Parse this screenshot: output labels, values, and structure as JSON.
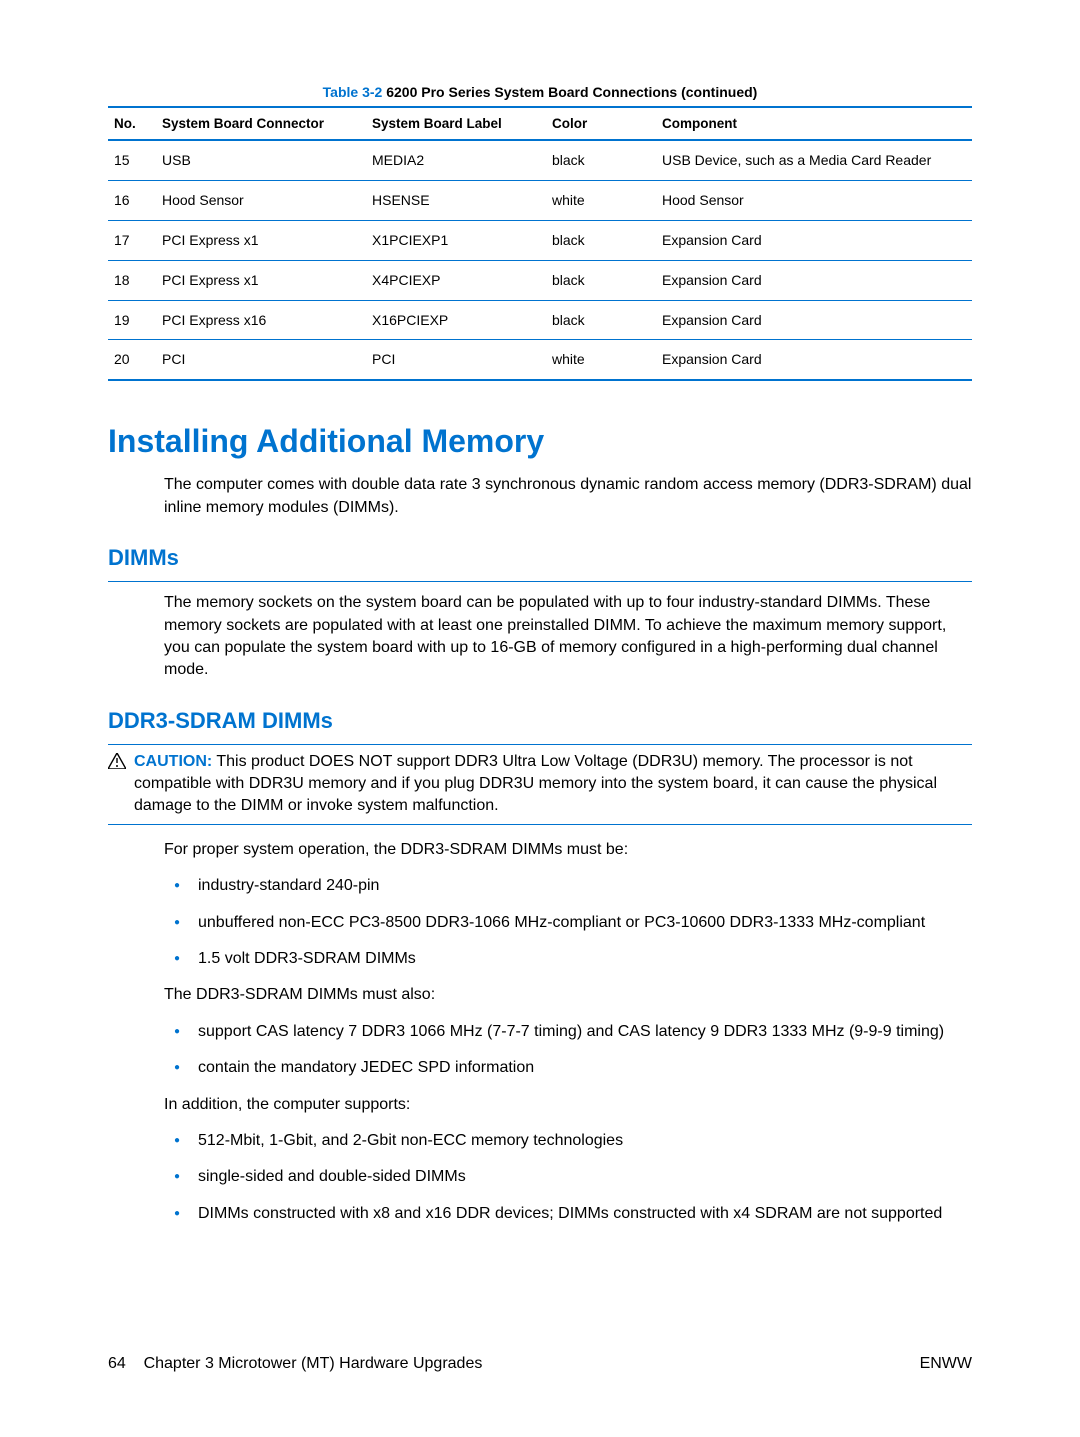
{
  "table": {
    "caption_prefix": "Table 3-2",
    "caption_rest": "  6200 Pro Series System Board Connections (continued)",
    "columns": [
      "No.",
      "System Board Connector",
      "System Board Label",
      "Color",
      "Component"
    ],
    "rows": [
      [
        "15",
        "USB",
        "MEDIA2",
        "black",
        "USB Device, such as a Media Card Reader"
      ],
      [
        "16",
        "Hood Sensor",
        "HSENSE",
        "white",
        "Hood Sensor"
      ],
      [
        "17",
        "PCI Express x1",
        "X1PCIEXP1",
        "black",
        "Expansion Card"
      ],
      [
        "18",
        "PCI Express x1",
        "X4PCIEXP",
        "black",
        "Expansion Card"
      ],
      [
        "19",
        "PCI Express x16",
        "X16PCIEXP",
        "black",
        "Expansion Card"
      ],
      [
        "20",
        "PCI",
        "PCI",
        "white",
        "Expansion Card"
      ]
    ]
  },
  "h1": "Installing Additional Memory",
  "intro": "The computer comes with double data rate 3 synchronous dynamic random access memory (DDR3-SDRAM) dual inline memory modules (DIMMs).",
  "h2_dimms": "DIMMs",
  "dimms_para": "The memory sockets on the system board can be populated with up to four industry-standard DIMMs. These memory sockets are populated with at least one preinstalled DIMM. To achieve the maximum memory support, you can populate the system board with up to 16-GB of memory configured in a high-performing dual channel mode.",
  "h2_ddr3": "DDR3-SDRAM DIMMs",
  "caution_label": "CAUTION:",
  "caution_text": "   This product DOES NOT support DDR3 Ultra Low Voltage (DDR3U) memory. The processor is not compatible with DDR3U memory and if you plug DDR3U memory into the system board, it can cause the physical damage to the DIMM or invoke system malfunction.",
  "para_proper": "For proper system operation, the DDR3-SDRAM DIMMs must be:",
  "list1": [
    "industry-standard 240-pin",
    "unbuffered non-ECC PC3-8500 DDR3-1066 MHz-compliant or PC3-10600 DDR3-1333 MHz-compliant",
    "1.5 volt DDR3-SDRAM DIMMs"
  ],
  "para_also": "The DDR3-SDRAM DIMMs must also:",
  "list2": [
    "support CAS latency 7 DDR3 1066 MHz (7-7-7 timing) and CAS latency 9 DDR3 1333 MHz (9-9-9 timing)",
    "contain the mandatory JEDEC SPD information"
  ],
  "para_addition": "In addition, the computer supports:",
  "list3": [
    "512-Mbit, 1-Gbit, and 2-Gbit non-ECC memory technologies",
    "single-sided and double-sided DIMMs",
    "DIMMs constructed with x8 and x16 DDR devices; DIMMs constructed with x4 SDRAM are not supported"
  ],
  "footer": {
    "page_num": "64",
    "chapter": "Chapter 3   Microtower (MT) Hardware Upgrades",
    "right": "ENWW"
  }
}
